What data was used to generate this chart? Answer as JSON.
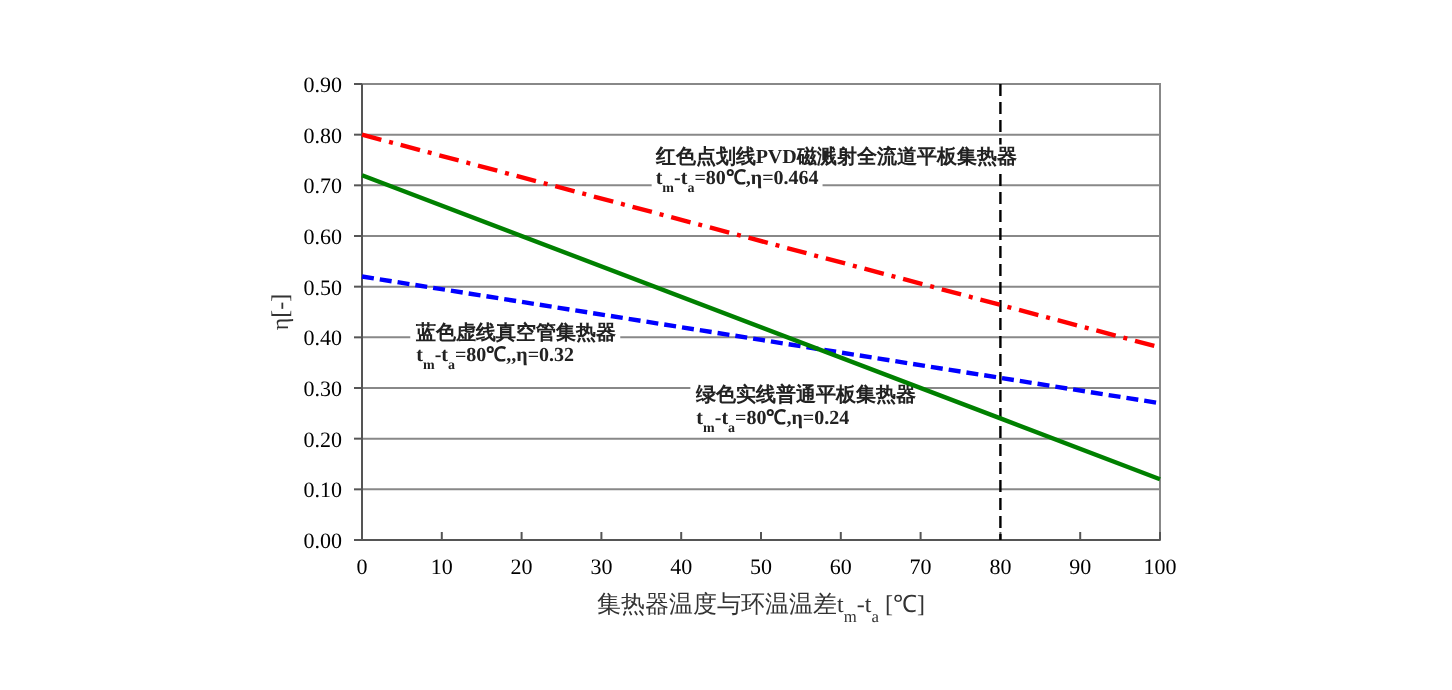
{
  "chart_data": {
    "type": "line",
    "xlabel": "集热器温度与环温温差t$_{m}$-t$_{a}$ [℃]",
    "ylabel": "η[-]",
    "xlim": [
      0,
      100
    ],
    "xticks": [
      0,
      10,
      20,
      30,
      40,
      50,
      60,
      70,
      80,
      90,
      100
    ],
    "ylim": [
      0,
      0.9
    ],
    "yticks": [
      {
        "value": 0,
        "label": "0.00"
      },
      {
        "value": 0.1,
        "label": "0.10"
      },
      {
        "value": 0.2,
        "label": "0.20"
      },
      {
        "value": 0.3,
        "label": "0.30"
      },
      {
        "value": 0.4,
        "label": "0.40"
      },
      {
        "value": 0.5,
        "label": "0.50"
      },
      {
        "value": 0.6,
        "label": "0.60"
      },
      {
        "value": 0.7,
        "label": "0.70"
      },
      {
        "value": 0.8,
        "label": "0.80"
      },
      {
        "value": 0.9,
        "label": "0.90"
      }
    ],
    "grid": "y",
    "marker": "none",
    "series": [
      {
        "color": "#ff0000",
        "line_style": "dashdot",
        "x": [
          0,
          80,
          100
        ],
        "values": [
          0.8,
          0.464,
          0.38
        ]
      },
      {
        "color": "#0000ff",
        "line_style": "dashed",
        "x": [
          0,
          80,
          100
        ],
        "values": [
          0.52,
          0.32,
          0.27
        ]
      },
      {
        "color": "#008000",
        "line_style": "solid",
        "x": [
          0,
          80,
          100
        ],
        "values": [
          0.72,
          0.24,
          0.12
        ]
      }
    ],
    "ref_lines": [
      {
        "axis": "x",
        "value": 80,
        "color": "#000000",
        "line_style": "dashed"
      }
    ],
    "annotations": [
      "红色点划线PVD磁溅射全流道平板集热器",
      "t$_{m}$-t$_{a}$=80℃,η=0.464",
      "蓝色虚线真空管集热器",
      "t$_{m}$-t$_{a}$=80℃,,η=0.32",
      "绿色实线普通平板集热器",
      "t$_{m}$-t$_{a}$=80℃,η=0.24"
    ]
  }
}
